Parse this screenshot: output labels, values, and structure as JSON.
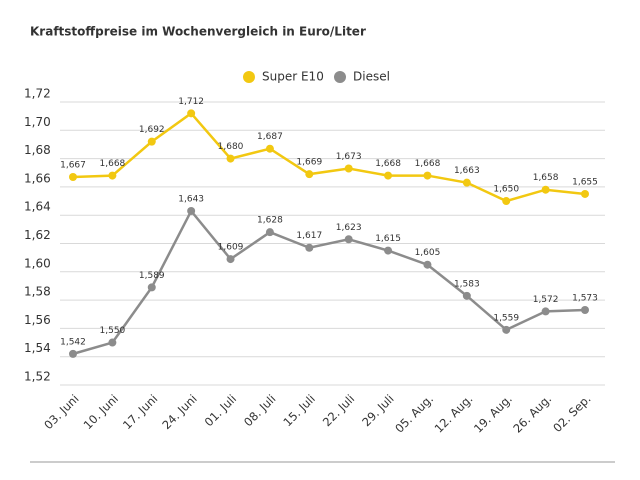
{
  "chart_data": {
    "type": "line",
    "title": "Kraftstoffpreise im Wochenvergleich in Euro/Liter",
    "categories": [
      "03. Juni",
      "10. Juni",
      "17. Juni",
      "24. Juni",
      "01. Juli",
      "08. Juli",
      "15. Juli",
      "22. Juli",
      "29. Juli",
      "05. Aug.",
      "12. Aug.",
      "19. Aug.",
      "26. Aug.",
      "02. Sep."
    ],
    "series": [
      {
        "name": "Super E10",
        "color": "#f2c811",
        "values": [
          1.667,
          1.668,
          1.692,
          1.712,
          1.68,
          1.687,
          1.669,
          1.673,
          1.668,
          1.668,
          1.663,
          1.65,
          1.658,
          1.655
        ],
        "value_labels": [
          "1,667",
          "1,668",
          "1,692",
          "1,712",
          "1,680",
          "1,687",
          "1,669",
          "1,673",
          "1,668",
          "1,668",
          "1,663",
          "1,650",
          "1,658",
          "1,655"
        ]
      },
      {
        "name": "Diesel",
        "color": "#8c8c8c",
        "values": [
          1.542,
          1.55,
          1.589,
          1.643,
          1.609,
          1.628,
          1.617,
          1.623,
          1.615,
          1.605,
          1.583,
          1.559,
          1.572,
          1.573
        ],
        "value_labels": [
          "1,542",
          "1,550",
          "1,589",
          "1,643",
          "1,609",
          "1,628",
          "1,617",
          "1,623",
          "1,615",
          "1,605",
          "1,583",
          "1,559",
          "1,572",
          "1,573"
        ]
      }
    ],
    "ylim": [
      1.52,
      1.72
    ],
    "yticks": [
      {
        "value": 1.52,
        "label": "1,52"
      },
      {
        "value": 1.54,
        "label": "1,54"
      },
      {
        "value": 1.56,
        "label": "1,56"
      },
      {
        "value": 1.58,
        "label": "1,58"
      },
      {
        "value": 1.6,
        "label": "1,60"
      },
      {
        "value": 1.62,
        "label": "1,62"
      },
      {
        "value": 1.64,
        "label": "1,64"
      },
      {
        "value": 1.66,
        "label": "1,66"
      },
      {
        "value": 1.68,
        "label": "1,68"
      },
      {
        "value": 1.7,
        "label": "1,70"
      },
      {
        "value": 1.72,
        "label": "1,72"
      }
    ],
    "grid": true
  }
}
